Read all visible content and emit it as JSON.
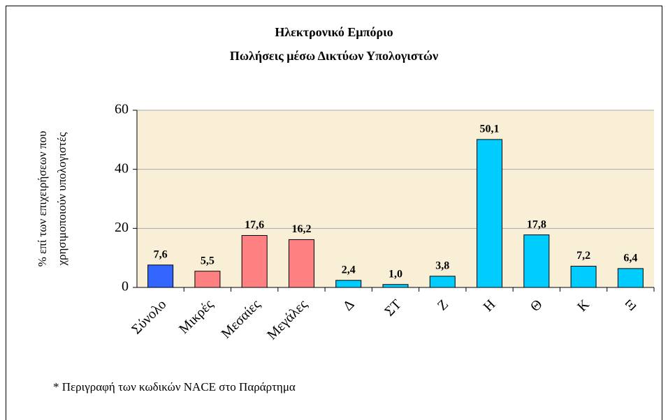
{
  "chart_data": {
    "type": "bar",
    "title": [
      "Ηλεκτρονικό Εμπόριο",
      "Πωλήσεις μέσω Δικτύων Υπολογιστών"
    ],
    "ylabel": [
      "% επί των επιχειρήσεων που",
      "χρησιμοποιούν υπολογιστές"
    ],
    "categories": [
      "Σύνολο",
      "Μικρές",
      "Μεσαίες",
      "Μεγάλες",
      "Δ",
      "ΣΤ",
      "Ζ",
      "Η",
      "Θ",
      "Κ",
      "Ξ"
    ],
    "values": [
      7.6,
      5.5,
      17.6,
      16.2,
      2.4,
      1.0,
      3.8,
      50.1,
      17.8,
      7.2,
      6.4
    ],
    "value_labels": [
      "7,6",
      "5,5",
      "17,6",
      "16,2",
      "2,4",
      "1,0",
      "3,8",
      "50,1",
      "17,8",
      "7,2",
      "6,4"
    ],
    "colors": [
      "#3366ff",
      "#ff8080",
      "#ff8080",
      "#ff8080",
      "#00ccff",
      "#00ccff",
      "#00ccff",
      "#00ccff",
      "#00ccff",
      "#00ccff",
      "#00ccff"
    ],
    "ylim": [
      0,
      60
    ],
    "yticks": [
      0,
      20,
      40,
      60
    ],
    "grid": true,
    "footnote": "* Περιγραφή των κωδικών NACE στο Παράρτημα"
  }
}
